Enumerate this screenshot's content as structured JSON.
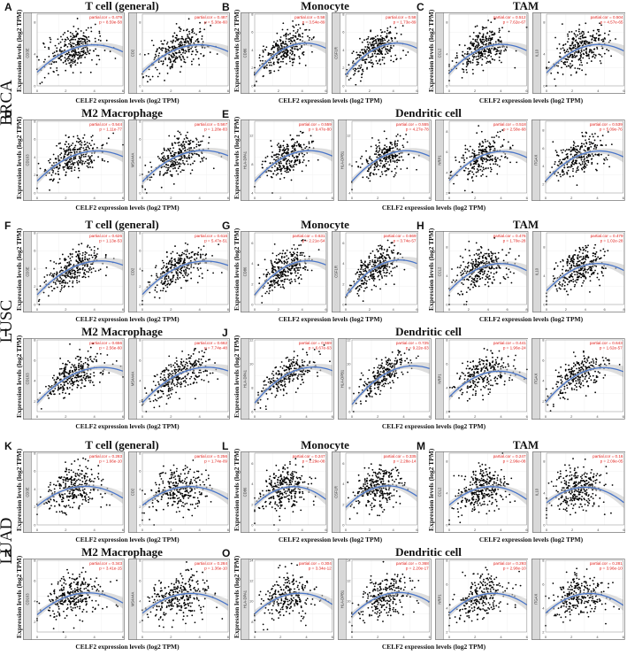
{
  "figure": {
    "cancer_labels": [
      "BRCA",
      "LUSC",
      "LUAD"
    ],
    "x_label": "CELF2 expression levels (log2 TPM)",
    "y_label": "Expression levels (log2 TPM)",
    "colors": {
      "point": "#000000",
      "fit": "#4a76c9",
      "band": "#c8c8c8",
      "strip": "#d9d9d9",
      "annotation": "#e0201b"
    }
  },
  "chart_data": [
    {
      "letter": "A",
      "title": "T cell (general)",
      "type": "scatter",
      "subplots": [
        {
          "gene": "CD3E",
          "cor": "partial.cor = 0.479",
          "p": "p = 8.59e-58",
          "xlim": [
            0,
            6
          ],
          "ylim": [
            0,
            9
          ]
        },
        {
          "gene": "CD2",
          "cor": "partial.cor = 0.487",
          "p": "p = 5.38e-60",
          "xlim": [
            0,
            6
          ],
          "ylim": [
            0,
            9
          ]
        }
      ]
    },
    {
      "letter": "B",
      "title": "Monocyte",
      "type": "scatter",
      "subplots": [
        {
          "gene": "CD86",
          "cor": "partial.cor = 0.58",
          "p": "p = 3.54e-89",
          "xlim": [
            0,
            6
          ],
          "ylim": [
            0,
            8
          ]
        },
        {
          "gene": "CSF1R",
          "cor": "partial.cor = 0.58",
          "p": "p = 1.73e-89",
          "xlim": [
            0,
            6
          ],
          "ylim": [
            0,
            8
          ]
        }
      ]
    },
    {
      "letter": "C",
      "title": "TAM",
      "type": "scatter",
      "subplots": [
        {
          "gene": "CCL2",
          "cor": "partial.cor = 0.512",
          "p": "p = 7.62e-67",
          "xlim": [
            0,
            6
          ],
          "ylim": [
            0,
            9
          ]
        },
        {
          "gene": "IL10",
          "cor": "partial.cor = 0.504",
          "p": "p = 4.57e-65",
          "xlim": [
            0,
            6
          ],
          "ylim": [
            0,
            9
          ]
        }
      ]
    },
    {
      "letter": "D",
      "title": "M2 Macrophage",
      "type": "scatter",
      "subplots": [
        {
          "gene": "CD163",
          "cor": "partial.cor = 0.544",
          "p": "p = 1.11e-77",
          "xlim": [
            0,
            6
          ],
          "ylim": [
            0,
            8
          ]
        },
        {
          "gene": "MS4A4A",
          "cor": "partial.cor = 0.567",
          "p": "p = 1.28e-83",
          "xlim": [
            0,
            6
          ],
          "ylim": [
            0,
            8
          ]
        }
      ]
    },
    {
      "letter": "E",
      "title": "Dendritic cell",
      "type": "scatter",
      "subplots": [
        {
          "gene": "HLA-DPA1",
          "cor": "partial.cor = 0.559",
          "p": "p = 9.47e-80",
          "xlim": [
            0,
            6
          ],
          "ylim": [
            4,
            14
          ]
        },
        {
          "gene": "HLA-DPB1",
          "cor": "partial.cor = 0.555",
          "p": "p = 4.27e-78",
          "xlim": [
            0,
            6
          ],
          "ylim": [
            4,
            14
          ]
        },
        {
          "gene": "NRP1",
          "cor": "partial.cor = 0.518",
          "p": "p = 2.58e-68",
          "xlim": [
            0,
            6
          ],
          "ylim": [
            2,
            9
          ]
        },
        {
          "gene": "ITGAX",
          "cor": "partial.cor = 0.539",
          "p": "p = 5.09e-76",
          "xlim": [
            0,
            6
          ],
          "ylim": [
            1,
            9
          ]
        }
      ]
    },
    {
      "letter": "F",
      "title": "T cell (general)",
      "type": "scatter",
      "subplots": [
        {
          "gene": "CD3E",
          "cor": "partial.cor = 0.626",
          "p": "p = 1.13e-53",
          "xlim": [
            0,
            6
          ],
          "ylim": [
            0,
            8
          ]
        },
        {
          "gene": "CD2",
          "cor": "partial.cor = 0.616",
          "p": "p = 5.47e-51",
          "xlim": [
            0,
            6
          ],
          "ylim": [
            0,
            8
          ]
        }
      ]
    },
    {
      "letter": "G",
      "title": "Monocyte",
      "type": "scatter",
      "subplots": [
        {
          "gene": "CD86",
          "cor": "partial.cor = 0.631",
          "p": "p = 2.21e-54",
          "xlim": [
            0,
            6
          ],
          "ylim": [
            0,
            7
          ]
        },
        {
          "gene": "CSF1R",
          "cor": "partial.cor = 0.669",
          "p": "p = 3.74e-57",
          "xlim": [
            0,
            6
          ],
          "ylim": [
            0,
            7
          ]
        }
      ]
    },
    {
      "letter": "H",
      "title": "TAM",
      "type": "scatter",
      "subplots": [
        {
          "gene": "CCL2",
          "cor": "partial.cor = 0.476",
          "p": "p = 1.70e-28",
          "xlim": [
            0,
            8
          ],
          "ylim": [
            0,
            10
          ]
        },
        {
          "gene": "IL10",
          "cor": "partial.cor = 0.479",
          "p": "p = 1.02e-28",
          "xlim": [
            0,
            8
          ],
          "ylim": [
            0,
            10
          ]
        }
      ]
    },
    {
      "letter": "I",
      "title": "M2 Macrophage",
      "type": "scatter",
      "subplots": [
        {
          "gene": "CD163",
          "cor": "partial.cor = 0.656",
          "p": "p = 2.56e-60",
          "xlim": [
            0,
            6
          ],
          "ylim": [
            1,
            8
          ]
        },
        {
          "gene": "MS4A4A",
          "cor": "partial.cor = 0.662",
          "p": "p = 7.74e-48",
          "xlim": [
            0,
            6
          ],
          "ylim": [
            1,
            8
          ]
        }
      ]
    },
    {
      "letter": "J",
      "title": "Dendritic cell",
      "type": "scatter",
      "subplots": [
        {
          "gene": "HLA-DPA1",
          "cor": "partial.cor = 0.669",
          "p": "p = 6.67e-63",
          "xlim": [
            0,
            6
          ],
          "ylim": [
            6,
            12
          ]
        },
        {
          "gene": "HLA-DPB1",
          "cor": "partial.cor = 0.725",
          "p": "p = 9.22e-63",
          "xlim": [
            0,
            6
          ],
          "ylim": [
            6,
            12
          ]
        },
        {
          "gene": "NRP1",
          "cor": "partial.cor = 0.441",
          "p": "p = 1.96e-24",
          "xlim": [
            0,
            6
          ],
          "ylim": [
            2,
            8
          ]
        },
        {
          "gene": "ITGAX",
          "cor": "partial.cor = 0.643",
          "p": "p = 1.62e-57",
          "xlim": [
            0,
            6
          ],
          "ylim": [
            1,
            8
          ]
        }
      ]
    },
    {
      "letter": "K",
      "title": "T cell (general)",
      "type": "scatter",
      "subplots": [
        {
          "gene": "CD3E",
          "cor": "partial.cor = 0.283",
          "p": "p = 1.66e-10",
          "xlim": [
            0,
            6
          ],
          "ylim": [
            0,
            8
          ]
        },
        {
          "gene": "CD2",
          "cor": "partial.cor = 0.256",
          "p": "p = 1.74e-09",
          "xlim": [
            0,
            6
          ],
          "ylim": [
            0,
            8
          ]
        }
      ]
    },
    {
      "letter": "L",
      "title": "Monocyte",
      "type": "scatter",
      "subplots": [
        {
          "gene": "CD86",
          "cor": "partial.cor = 0.247",
          "p": "p = 2.29e-08",
          "xlim": [
            0,
            6
          ],
          "ylim": [
            0,
            7
          ]
        },
        {
          "gene": "CSF1R",
          "cor": "partial.cor = 0.335",
          "p": "p = 2.28e-14",
          "xlim": [
            0,
            6
          ],
          "ylim": [
            0,
            7
          ]
        }
      ]
    },
    {
      "letter": "M",
      "title": "TAM",
      "type": "scatter",
      "subplots": [
        {
          "gene": "CCL2",
          "cor": "partial.cor = 0.247",
          "p": "p = 2.96e-08",
          "xlim": [
            0,
            6
          ],
          "ylim": [
            0,
            9
          ]
        },
        {
          "gene": "IL10",
          "cor": "partial.cor = 0.16",
          "p": "p = 2.09e-05",
          "xlim": [
            0,
            6
          ],
          "ylim": [
            0,
            9
          ]
        }
      ]
    },
    {
      "letter": "N",
      "title": "M2 Macrophage",
      "type": "scatter",
      "subplots": [
        {
          "gene": "CD163",
          "cor": "partial.cor = 0.343",
          "p": "p = 3.41e-15",
          "xlim": [
            0,
            6
          ],
          "ylim": [
            1,
            8
          ]
        },
        {
          "gene": "MS4A4A",
          "cor": "partial.cor = 0.284",
          "p": "p = 1.36e-10",
          "xlim": [
            0,
            6
          ],
          "ylim": [
            1,
            8
          ]
        }
      ]
    },
    {
      "letter": "O",
      "title": "Dendritic cell",
      "type": "scatter",
      "subplots": [
        {
          "gene": "HLA-DPA1",
          "cor": "partial.cor = 0.304",
          "p": "p = 3.34e-12",
          "xlim": [
            0,
            6
          ],
          "ylim": [
            7,
            14
          ]
        },
        {
          "gene": "HLA-DPB1",
          "cor": "partial.cor = 0.368",
          "p": "p = 2.20e-17",
          "xlim": [
            0,
            6
          ],
          "ylim": [
            7,
            14
          ]
        },
        {
          "gene": "NRP1",
          "cor": "partial.cor = 0.293",
          "p": "p = 2.98e-10",
          "xlim": [
            0,
            6
          ],
          "ylim": [
            2,
            8
          ]
        },
        {
          "gene": "ITGAX",
          "cor": "partial.cor = 0.281",
          "p": "p = 3.96e-10",
          "xlim": [
            0,
            6
          ],
          "ylim": [
            2,
            8
          ]
        }
      ]
    }
  ]
}
